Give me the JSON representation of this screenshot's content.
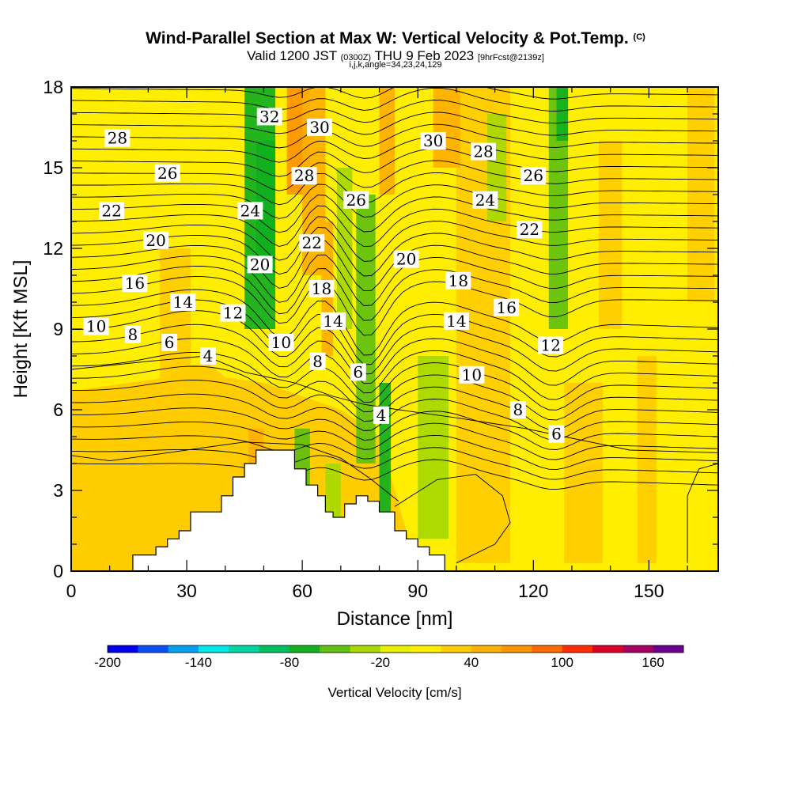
{
  "header": {
    "title": "Wind-Parallel Section at Max W: Vertical Velocity & Pot.Temp.",
    "title_mark": "(C)",
    "valid_prefix": "Valid 1200 JST",
    "valid_utc": "(0300Z)",
    "valid_date": "THU 9 Feb 2023",
    "forecast": "[9hrFcst@2139z]",
    "subtitle2": "i,j,k,angle=34,23,24,129"
  },
  "chart_data": {
    "type": "heatmap",
    "xlabel": "Distance [nm]",
    "ylabel": "Height [Kft MSL]",
    "xlim": [
      0,
      168
    ],
    "ylim": [
      0,
      18
    ],
    "x_ticks": [
      "0",
      "30",
      "60",
      "90",
      "120",
      "150"
    ],
    "y_ticks": [
      "0",
      "3",
      "6",
      "9",
      "12",
      "15",
      "18"
    ],
    "colorbar": {
      "label": "Vertical Velocity [cm/s]",
      "tick_labels": [
        "-200",
        "-140",
        "-80",
        "-20",
        "40",
        "100",
        "160"
      ],
      "levels": [
        -200,
        -180,
        -160,
        -140,
        -120,
        -100,
        -80,
        -60,
        -40,
        -20,
        0,
        20,
        40,
        60,
        80,
        100,
        120,
        140,
        160
      ],
      "colors": [
        "#0000ee",
        "#0a50f0",
        "#00a0f0",
        "#00e8e8",
        "#00d6a0",
        "#00c060",
        "#10b020",
        "#60c010",
        "#a8d800",
        "#e8f000",
        "#ffee00",
        "#ffcc00",
        "#ffb000",
        "#ff9400",
        "#ff6a00",
        "#ff2a00",
        "#dd0028",
        "#a80060",
        "#6a0090"
      ]
    },
    "theta_contour_labels": [
      {
        "text": "28",
        "x": 12,
        "y": 16.1
      },
      {
        "text": "26",
        "x": 25,
        "y": 14.8
      },
      {
        "text": "22",
        "x": 10.5,
        "y": 13.4
      },
      {
        "text": "20",
        "x": 22,
        "y": 12.3
      },
      {
        "text": "16",
        "x": 16.5,
        "y": 10.7
      },
      {
        "text": "14",
        "x": 29,
        "y": 10.0
      },
      {
        "text": "10",
        "x": 6.5,
        "y": 9.1
      },
      {
        "text": "8",
        "x": 16,
        "y": 8.8
      },
      {
        "text": "6",
        "x": 25.5,
        "y": 8.5
      },
      {
        "text": "4",
        "x": 35.5,
        "y": 8.0
      },
      {
        "text": "12",
        "x": 42,
        "y": 9.6
      },
      {
        "text": "32",
        "x": 51.5,
        "y": 16.9
      },
      {
        "text": "30",
        "x": 64.5,
        "y": 16.5
      },
      {
        "text": "28",
        "x": 60.5,
        "y": 14.7
      },
      {
        "text": "24",
        "x": 46.5,
        "y": 13.4
      },
      {
        "text": "26",
        "x": 74,
        "y": 13.8
      },
      {
        "text": "22",
        "x": 62.5,
        "y": 12.2
      },
      {
        "text": "20",
        "x": 49,
        "y": 11.4
      },
      {
        "text": "18",
        "x": 65,
        "y": 10.5
      },
      {
        "text": "14",
        "x": 68,
        "y": 9.3
      },
      {
        "text": "10",
        "x": 54.5,
        "y": 8.5
      },
      {
        "text": "8",
        "x": 64,
        "y": 7.8
      },
      {
        "text": "6",
        "x": 74.5,
        "y": 7.4
      },
      {
        "text": "4",
        "x": 80.5,
        "y": 5.8
      },
      {
        "text": "20",
        "x": 87,
        "y": 11.6
      },
      {
        "text": "30",
        "x": 94,
        "y": 16.0
      },
      {
        "text": "28",
        "x": 107,
        "y": 15.6
      },
      {
        "text": "26",
        "x": 120,
        "y": 14.7
      },
      {
        "text": "24",
        "x": 107.5,
        "y": 13.8
      },
      {
        "text": "22",
        "x": 119,
        "y": 12.7
      },
      {
        "text": "18",
        "x": 100.5,
        "y": 10.8
      },
      {
        "text": "14",
        "x": 100,
        "y": 9.3
      },
      {
        "text": "16",
        "x": 113,
        "y": 9.8
      },
      {
        "text": "12",
        "x": 124.5,
        "y": 8.4
      },
      {
        "text": "10",
        "x": 104,
        "y": 7.3
      },
      {
        "text": "8",
        "x": 116,
        "y": 6.0
      },
      {
        "text": "6",
        "x": 126,
        "y": 5.1
      }
    ],
    "terrain_profile": [
      [
        16,
        0.3
      ],
      [
        16,
        0.6
      ],
      [
        22,
        0.6
      ],
      [
        22,
        0.9
      ],
      [
        25,
        0.9
      ],
      [
        25,
        1.2
      ],
      [
        28,
        1.2
      ],
      [
        28,
        1.5
      ],
      [
        31,
        1.5
      ],
      [
        31,
        2.2
      ],
      [
        39,
        2.2
      ],
      [
        39,
        2.8
      ],
      [
        42,
        2.8
      ],
      [
        42,
        3.5
      ],
      [
        45,
        3.5
      ],
      [
        45,
        4.0
      ],
      [
        48,
        4.0
      ],
      [
        48,
        4.5
      ],
      [
        58,
        4.5
      ],
      [
        58,
        3.8
      ],
      [
        61,
        3.8
      ],
      [
        61,
        3.2
      ],
      [
        64,
        3.2
      ],
      [
        64,
        2.8
      ],
      [
        66,
        2.8
      ],
      [
        66,
        2.2
      ],
      [
        68,
        2.2
      ],
      [
        68,
        2.0
      ],
      [
        71,
        2.0
      ],
      [
        71,
        2.5
      ],
      [
        74,
        2.5
      ],
      [
        74,
        2.8
      ],
      [
        77,
        2.8
      ],
      [
        77,
        2.6
      ],
      [
        80,
        2.6
      ],
      [
        80,
        2.2
      ],
      [
        84,
        2.2
      ],
      [
        84,
        1.5
      ],
      [
        87,
        1.5
      ],
      [
        87,
        1.2
      ],
      [
        90,
        1.2
      ],
      [
        90,
        0.9
      ],
      [
        93,
        0.9
      ],
      [
        93,
        0.6
      ],
      [
        97,
        0.6
      ],
      [
        97,
        0.3
      ]
    ],
    "velocity_bands": [
      {
        "x": 23,
        "w": 8,
        "ylo": 0.3,
        "yhi": 12,
        "v": 25
      },
      {
        "x": 100,
        "w": 14,
        "ylo": 0.3,
        "yhi": 18,
        "v": 25
      },
      {
        "x": 128,
        "w": 10,
        "ylo": 0.3,
        "yhi": 7,
        "v": 30
      },
      {
        "x": 137,
        "w": 6,
        "ylo": 9,
        "yhi": 16,
        "v": 25
      },
      {
        "x": 160,
        "w": 7,
        "ylo": 10,
        "yhi": 18,
        "v": 25
      },
      {
        "x": 45,
        "w": 8,
        "ylo": 9,
        "yhi": 18,
        "v": -65
      },
      {
        "x": 48,
        "w": 5,
        "ylo": 11,
        "yhi": 16,
        "v": -75
      },
      {
        "x": 56,
        "w": 6,
        "ylo": 14,
        "yhi": 18,
        "v": 70
      },
      {
        "x": 60,
        "w": 6,
        "ylo": 11,
        "yhi": 18,
        "v": 55
      },
      {
        "x": 69,
        "w": 4,
        "ylo": 9,
        "yhi": 15,
        "v": -35
      },
      {
        "x": 74,
        "w": 5,
        "ylo": 4,
        "yhi": 14,
        "v": -55
      },
      {
        "x": 80,
        "w": 3,
        "ylo": 2,
        "yhi": 7,
        "v": -75
      },
      {
        "x": 80,
        "w": 4,
        "ylo": 14,
        "yhi": 18,
        "v": 55
      },
      {
        "x": 94,
        "w": 7,
        "ylo": 15,
        "yhi": 18,
        "v": 45
      },
      {
        "x": 124,
        "w": 5,
        "ylo": 9,
        "yhi": 18,
        "v": -45
      },
      {
        "x": 126,
        "w": 3,
        "ylo": 16,
        "yhi": 18,
        "v": -65
      },
      {
        "x": 108,
        "w": 5,
        "ylo": 13,
        "yhi": 17,
        "v": -25
      },
      {
        "x": 46,
        "w": 4,
        "ylo": 3.5,
        "yhi": 5.3,
        "v": 45
      },
      {
        "x": 58,
        "w": 4,
        "ylo": 0.5,
        "yhi": 5.3,
        "v": -45
      },
      {
        "x": 66,
        "w": 4,
        "ylo": 1,
        "yhi": 4,
        "v": -30
      },
      {
        "x": 90,
        "w": 8,
        "ylo": 1.2,
        "yhi": 8,
        "v": -25
      },
      {
        "x": 147,
        "w": 5,
        "ylo": 0.3,
        "yhi": 8,
        "v": 25
      },
      {
        "x": 65,
        "w": 3,
        "ylo": 8,
        "yhi": 13,
        "v": 45
      }
    ]
  }
}
